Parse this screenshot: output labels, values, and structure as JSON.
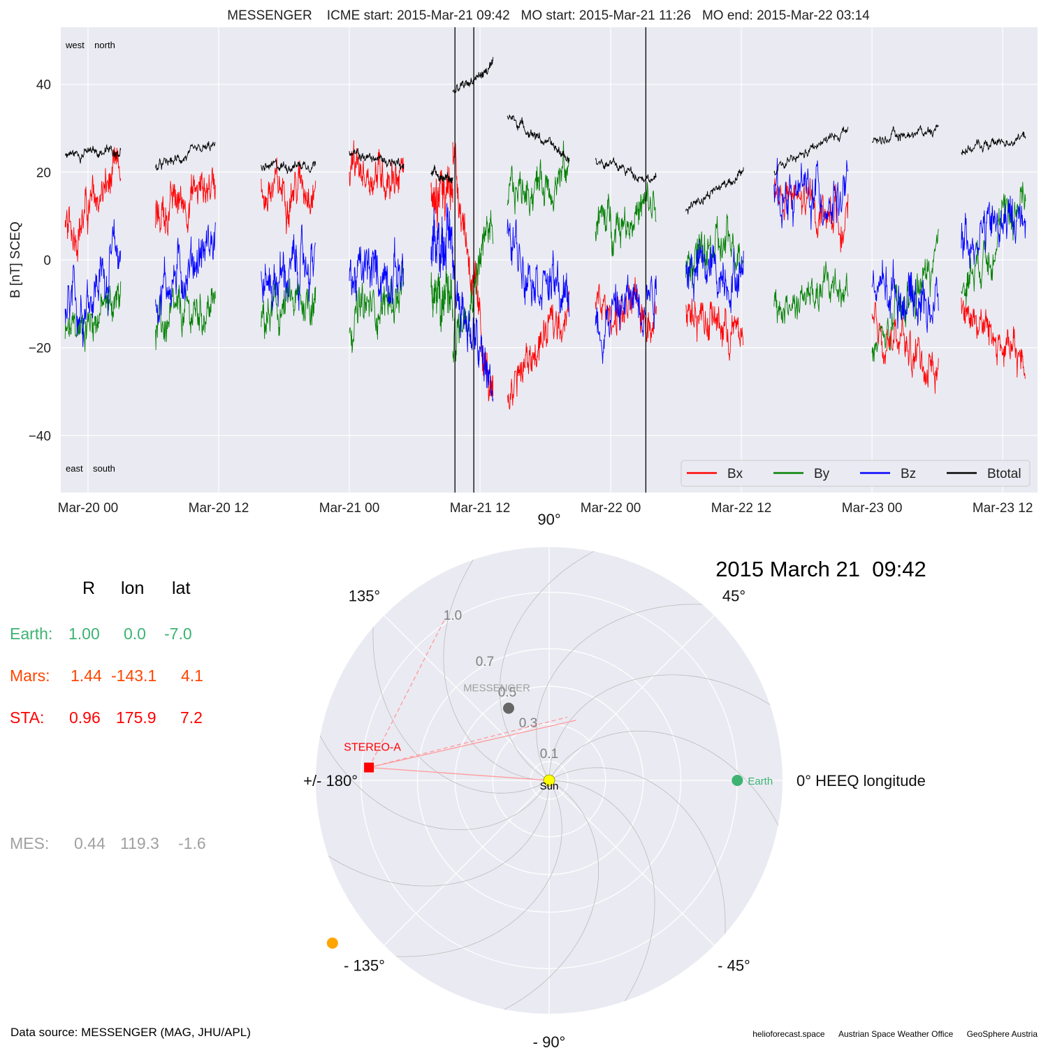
{
  "chart_data": [
    {
      "type": "line",
      "title": "MESSENGER    ICME start: 2015-Mar-21 09:42   MO start: 2015-Mar-21 11:26   MO end: 2015-Mar-22 03:14",
      "ylabel": "B [nT] SCEQ",
      "xlabel": "",
      "ylim": [
        -53,
        53
      ],
      "yticks": [
        -40,
        -20,
        0,
        20,
        40
      ],
      "xticks": [
        "Mar-20 00",
        "Mar-20 12",
        "Mar-21 00",
        "Mar-21 12",
        "Mar-22 00",
        "Mar-22 12",
        "Mar-23 00",
        "Mar-23 12"
      ],
      "xlim_hours": [
        -2.5,
        87.2
      ],
      "x_unit": "hours since 2015-03-20 00:00",
      "grid": true,
      "legend_position": "lower-right",
      "corner_labels": {
        "top": "west    north",
        "bottom": "east    south"
      },
      "event_lines_hours": [
        33.7,
        35.43,
        51.23
      ],
      "series": [
        {
          "name": "Bx",
          "color": "#ff0000"
        },
        {
          "name": "By",
          "color": "#008000"
        },
        {
          "name": "Bz",
          "color": "#0000ff"
        },
        {
          "name": "Btotal",
          "color": "#000000"
        }
      ],
      "segments": [
        {
          "start": -2.1,
          "end": 3.0,
          "bx": [
            5,
            20
          ],
          "by": [
            -18,
            -8
          ],
          "bz": [
            -14,
            2
          ],
          "bt": [
            24,
            25
          ]
        },
        {
          "start": 6.2,
          "end": 11.7,
          "bx": [
            10,
            18
          ],
          "by": [
            -16,
            -10
          ],
          "bz": [
            -8,
            5
          ],
          "bt": [
            21,
            26
          ]
        },
        {
          "start": 15.9,
          "end": 20.9,
          "bx": [
            15,
            18
          ],
          "by": [
            -14,
            -8
          ],
          "bz": [
            -6,
            0
          ],
          "bt": [
            21,
            22
          ]
        },
        {
          "start": 24.0,
          "end": 29.0,
          "bx": [
            20,
            20
          ],
          "by": [
            -13,
            -8
          ],
          "bz": [
            -4,
            -2
          ],
          "bt": [
            24,
            22
          ]
        },
        {
          "start": 31.5,
          "end": 33.5,
          "bx": [
            18,
            15
          ],
          "by": [
            -8,
            -10
          ],
          "bz": [
            0,
            8
          ],
          "bt": [
            20,
            18
          ]
        },
        {
          "start": 33.5,
          "end": 37.2,
          "bx": [
            25,
            -35
          ],
          "by": [
            -20,
            10
          ],
          "bz": [
            -5,
            -30
          ],
          "bt": [
            38,
            44
          ]
        },
        {
          "start": 38.5,
          "end": 44.2,
          "bx": [
            -30,
            -10
          ],
          "by": [
            15,
            20
          ],
          "bz": [
            5,
            -10
          ],
          "bt": [
            33,
            23
          ]
        },
        {
          "start": 46.6,
          "end": 52.2,
          "bx": [
            -12,
            -12
          ],
          "by": [
            8,
            12
          ],
          "bz": [
            -15,
            -5
          ],
          "bt": [
            23,
            18
          ]
        },
        {
          "start": 54.9,
          "end": 60.2,
          "bx": [
            -10,
            -18
          ],
          "by": [
            0,
            4
          ],
          "bz": [
            -2,
            -3
          ],
          "bt": [
            12,
            20
          ]
        },
        {
          "start": 63.0,
          "end": 69.8,
          "bx": [
            14,
            10
          ],
          "by": [
            -12,
            -5
          ],
          "bz": [
            15,
            15
          ],
          "bt": [
            20,
            30
          ]
        },
        {
          "start": 72.0,
          "end": 78.1,
          "bx": [
            -15,
            -25
          ],
          "by": [
            -22,
            0
          ],
          "bz": [
            -5,
            -10
          ],
          "bt": [
            27,
            30
          ]
        },
        {
          "start": 80.2,
          "end": 86.1,
          "bx": [
            -10,
            -25
          ],
          "by": [
            -5,
            15
          ],
          "bz": [
            5,
            10
          ],
          "bt": [
            25,
            28
          ]
        }
      ]
    },
    {
      "type": "scatter",
      "subtype": "polar",
      "title": "2015 March 21  09:42",
      "angle_labels": [
        "0° HEEQ longitude",
        "45°",
        "90°",
        "135°",
        "+/- 180°",
        "- 135°",
        "- 90°",
        "- 45°"
      ],
      "angle_label_degrees": [
        0,
        45,
        90,
        135,
        180,
        -135,
        -90,
        -45
      ],
      "radial_ticks": [
        0.1,
        0.3,
        0.5,
        0.7,
        1.0
      ],
      "radial_tick_labels": [
        "0.1",
        "0.3",
        "0.5",
        "0.7",
        "1.0"
      ],
      "rmax": 1.24,
      "grid": true,
      "bodies": [
        {
          "name": "Sun",
          "label": "Sun",
          "r": 0.0,
          "lon": 0.0,
          "color": "#ffff00",
          "marker": "circle"
        },
        {
          "name": "Earth",
          "label": "Earth",
          "r": 1.0,
          "lon": 0.0,
          "color": "#3cb371",
          "marker": "circle"
        },
        {
          "name": "MESSENGER",
          "label": "MESSENGER",
          "r": 0.44,
          "lon": 119.3,
          "color": "#666666",
          "marker": "circle"
        },
        {
          "name": "STEREO-A",
          "label": "STEREO-A",
          "r": 0.96,
          "lon": 175.9,
          "color": "#ff0000",
          "marker": "square"
        },
        {
          "name": "Mars",
          "label": "",
          "r": 1.44,
          "lon": -143.1,
          "color": "#ffa500",
          "marker": "circle"
        }
      ],
      "stereo_view_lines": {
        "color": "#ff9999",
        "solid_to": [
          {
            "r": 0.0,
            "lon": 0.0
          },
          {
            "r": 0.35,
            "lon": 66.0
          }
        ],
        "dashed_to": [
          {
            "r": 0.35,
            "lon": 74.0
          },
          {
            "r": 1.02,
            "lon": 123.0
          }
        ]
      },
      "spiral_count": 12
    }
  ],
  "positions": {
    "headers": [
      "R",
      "lon",
      "lat"
    ],
    "rows": [
      {
        "name": "Earth:",
        "r": "1.00",
        "lon": "0.0",
        "lat": "-7.0",
        "color": "#3cb371"
      },
      {
        "name": "Mars:",
        "r": "1.44",
        "lon": "-143.1",
        "lat": "4.1",
        "color": "#ff4500"
      },
      {
        "name": "STA:",
        "r": "0.96",
        "lon": "175.9",
        "lat": "7.2",
        "color": "#ff0000"
      },
      {
        "name": "MES:",
        "r": "0.44",
        "lon": "119.3",
        "lat": "-1.6",
        "color": "#a0a0a0"
      }
    ]
  },
  "footer": {
    "source": "Data source: MESSENGER (MAG, JHU/APL)",
    "credits": [
      "helioforecast.space",
      "Austrian Space Weather Office",
      "GeoSphere Austria"
    ]
  }
}
